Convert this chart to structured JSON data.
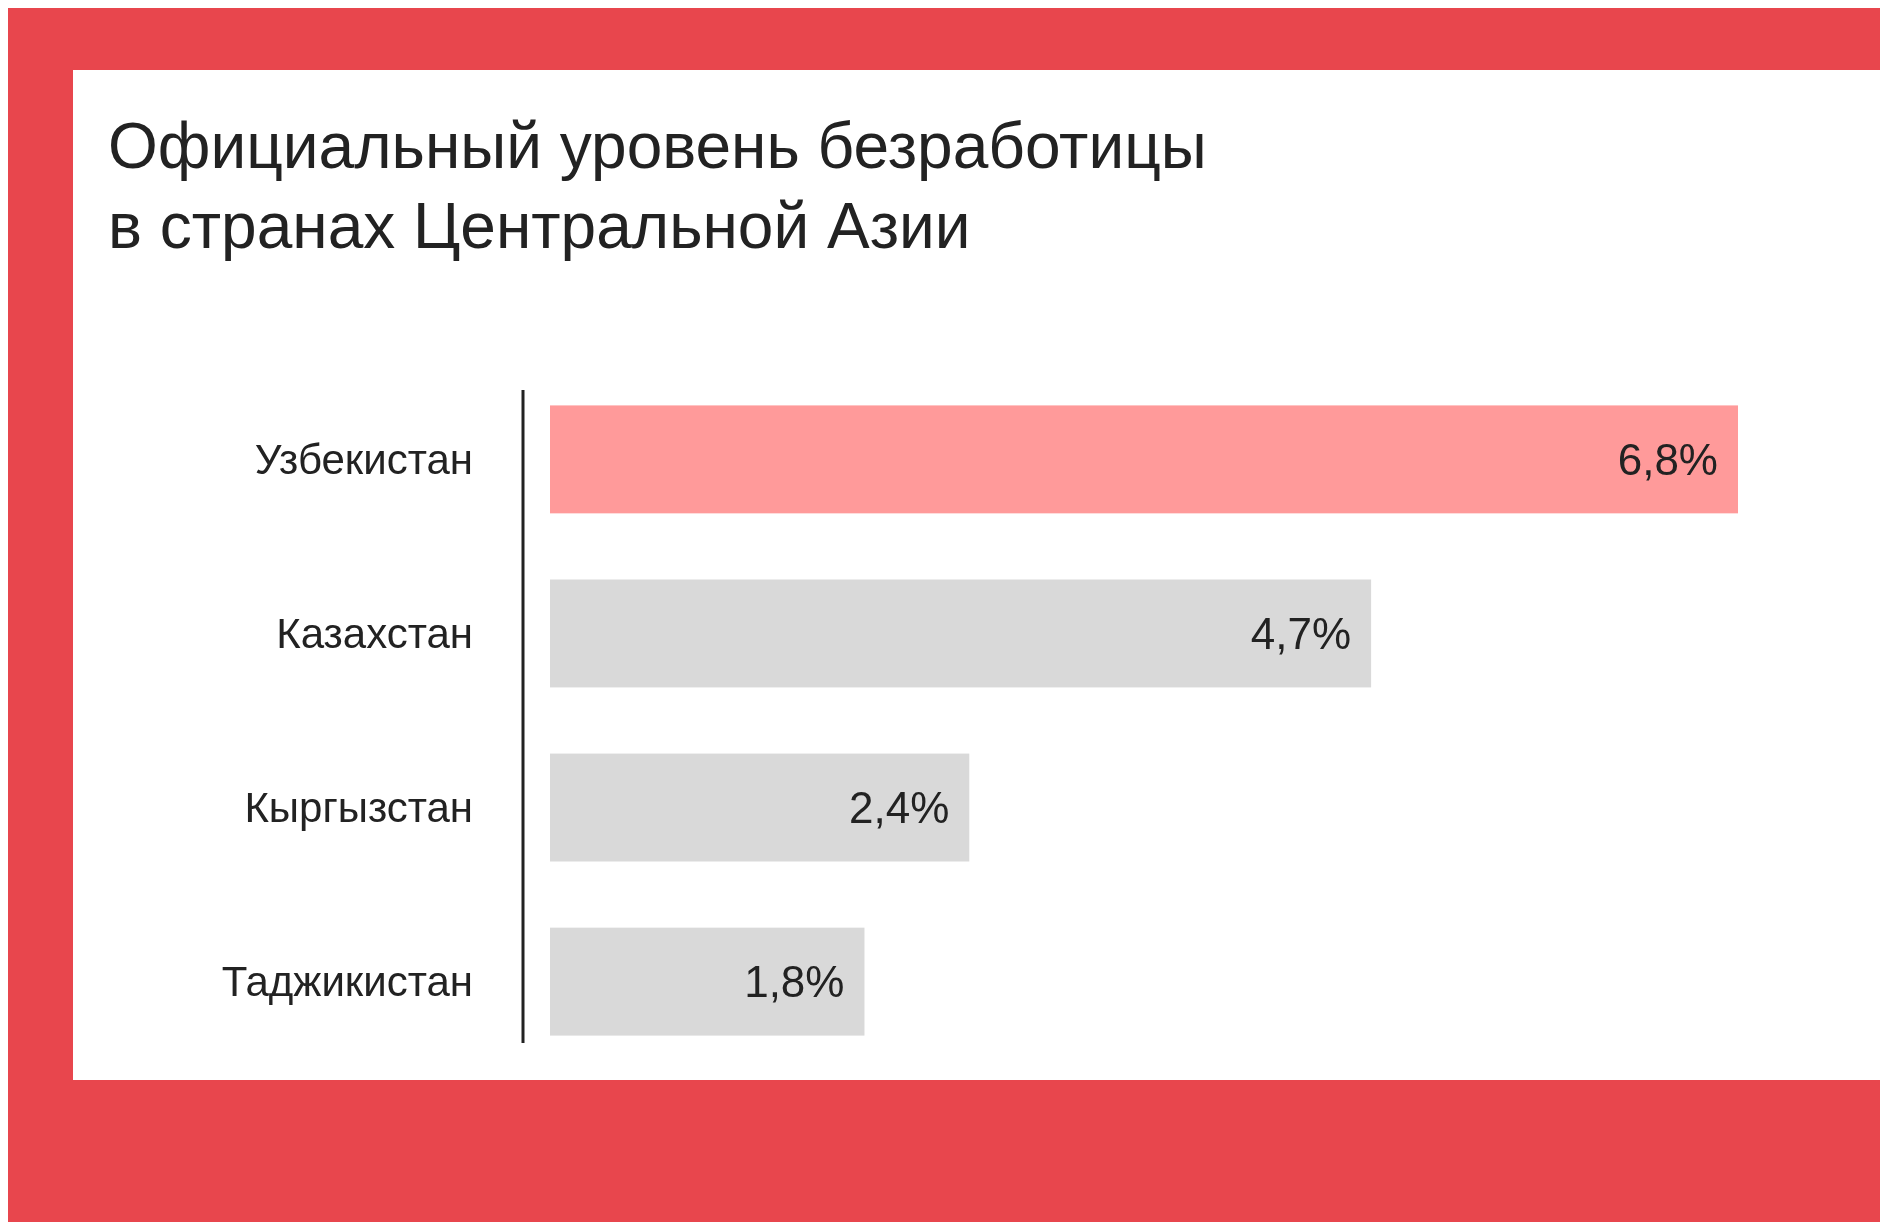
{
  "chart_data": {
    "type": "bar",
    "orientation": "horizontal",
    "title": "Официальный уровень безработицы\nв странах Центральной Азии",
    "categories": [
      "Узбекистан",
      "Казахстан",
      "Кыргызстан",
      "Таджикистан"
    ],
    "values": [
      6.8,
      4.7,
      2.4,
      1.8
    ],
    "colors": [
      "#ff9a9a",
      "#d9d9d9",
      "#d9d9d9",
      "#d9d9d9"
    ],
    "value_labels": [
      "6,8%",
      "4,7%",
      "2,4%",
      "1,8%"
    ]
  }
}
